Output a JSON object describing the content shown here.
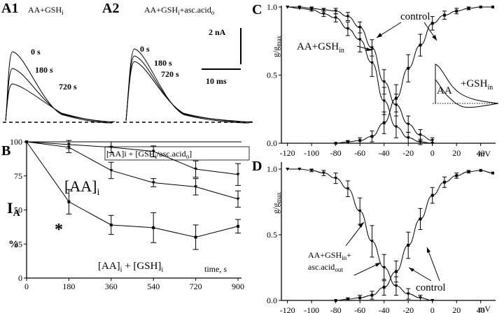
{
  "panelA": {
    "a1_label": "A1",
    "a1_condition": "AA+GSH",
    "a1_condition_sub": "i",
    "a2_label": "A2",
    "a2_condition": "AA+GSH",
    "a2_condition_sub": "i",
    "a2_condition_mid": "+asc.acid",
    "a2_condition_sub2": "o",
    "time_0": "0 s",
    "time_180": "180 s",
    "time_720": "720 s",
    "scale_current": "2 nA",
    "scale_time": "10 ms"
  },
  "panelB": {
    "label": "B",
    "ylabel": "I",
    "ylabel_sub": "A",
    "ylabel_unit": "%",
    "xlabel": "time, s",
    "legend_top_a": "[AA]i + [GSH",
    "legend_top_sub1": "i",
    "legend_top_b": "/asc.acid",
    "legend_top_sub2": "o",
    "legend_top_c": "]",
    "label_aa": "[AA]",
    "label_aa_sub": "i",
    "label_aagsh": "[AA]",
    "label_aagsh_sub": "i",
    "label_aagsh_mid": " + [GSH]",
    "label_aagsh_sub2": "i",
    "asterisk": "*"
  },
  "panelC": {
    "label": "C",
    "ylabel": "g/g",
    "ylabel_sub": "max",
    "xunit": "mV",
    "label_control": "control",
    "label_aagsh": "AA+GSH",
    "label_aagsh_sub": "in",
    "inset_gsh": "+GSH",
    "inset_gsh_sub": "in",
    "inset_aa": "AA"
  },
  "panelD": {
    "label": "D",
    "ylabel": "g/g",
    "ylabel_sub": "max",
    "xunit": "mV",
    "label_line1": "AA+GSH",
    "label_line1_sub": "in",
    "label_line1_end": "+",
    "label_line2": "asc.acid",
    "label_line2_sub": "out",
    "label_control": "control"
  },
  "chart_data": [
    {
      "type": "line",
      "panel": "B",
      "xlabel": "time, s",
      "ylabel": "IA %",
      "x": [
        0,
        180,
        360,
        540,
        720,
        900
      ],
      "xlim": [
        0,
        900
      ],
      "ylim": [
        0,
        100
      ],
      "xticks": [
        "0",
        "180",
        "360",
        "540",
        "720",
        "900"
      ],
      "yticks": [
        "0",
        "25",
        "50",
        "75",
        "100"
      ],
      "series": [
        {
          "name": "[AA]i + [GSHi/asc.acido]",
          "values": [
            100,
            98,
            96,
            93,
            80,
            76
          ],
          "errors": [
            0,
            3,
            4,
            4,
            6,
            8
          ]
        },
        {
          "name": "[AA]i",
          "values": [
            100,
            96,
            79,
            70,
            67,
            58
          ],
          "errors": [
            0,
            4,
            6,
            3,
            6,
            6
          ]
        },
        {
          "name": "[AA]i + [GSH]i",
          "values": [
            100,
            56,
            39,
            37,
            30,
            38
          ],
          "errors": [
            0,
            9,
            7,
            11,
            9,
            5
          ]
        }
      ]
    },
    {
      "type": "scatter",
      "panel": "C",
      "ylabel": "g/gmax",
      "xlabel": "mV",
      "xlim": [
        -125,
        50
      ],
      "ylim": [
        0,
        1.0
      ],
      "xticks": [
        "-120",
        "-100",
        "-80",
        "-60",
        "-40",
        "-20",
        "0",
        "20",
        "40"
      ],
      "yticks": [
        "0.0",
        "0.5",
        "1.0"
      ],
      "series": [
        {
          "name": "control",
          "kind": "inactivation",
          "x": [
            -120,
            -110,
            -100,
            -90,
            -80,
            -70,
            -60,
            -50,
            -40,
            -30,
            -20,
            -10,
            0
          ],
          "values": [
            1.0,
            1.0,
            0.99,
            0.98,
            0.97,
            0.93,
            0.85,
            0.7,
            0.45,
            0.28,
            0.14,
            0.06,
            0.02
          ],
          "errors": [
            0,
            0,
            0.01,
            0.01,
            0.02,
            0.03,
            0.04,
            0.06,
            0.09,
            0.08,
            0.06,
            0.04,
            0.02
          ]
        },
        {
          "name": "AA+GSHin",
          "kind": "inactivation",
          "x": [
            -120,
            -110,
            -100,
            -90,
            -80,
            -70,
            -60,
            -50,
            -40,
            -30,
            -20,
            -10,
            0
          ],
          "values": [
            1.0,
            0.99,
            0.98,
            0.95,
            0.92,
            0.84,
            0.76,
            0.59,
            0.31,
            0.12,
            0.04,
            0.01,
            0.0
          ],
          "errors": [
            0,
            0,
            0.01,
            0.02,
            0.03,
            0.05,
            0.09,
            0.1,
            0.1,
            0.08,
            0.04,
            0.02,
            0
          ]
        },
        {
          "name": "control activation",
          "kind": "activation",
          "x": [
            -80,
            -70,
            -60,
            -50,
            -40,
            -30,
            -20,
            -10,
            0,
            10,
            20,
            30,
            40,
            50
          ],
          "values": [
            0.0,
            0.01,
            0.02,
            0.05,
            0.15,
            0.33,
            0.55,
            0.72,
            0.88,
            0.94,
            0.97,
            0.99,
            1.0,
            1.0
          ],
          "errors": [
            0,
            0.01,
            0.02,
            0.04,
            0.08,
            0.1,
            0.1,
            0.08,
            0.05,
            0.03,
            0.02,
            0.01,
            0,
            0
          ]
        }
      ]
    },
    {
      "type": "scatter",
      "panel": "D",
      "ylabel": "g/gmax",
      "xlabel": "mV",
      "xlim": [
        -125,
        50
      ],
      "ylim": [
        0,
        1.0
      ],
      "xticks": [
        "-120",
        "-100",
        "-80",
        "-60",
        "-40",
        "-20",
        "0",
        "20",
        "40"
      ],
      "yticks": [
        "0.0",
        "0.5",
        "1.0"
      ],
      "series": [
        {
          "name": "AA+GSHin+asc.acidout",
          "kind": "inactivation",
          "x": [
            -120,
            -110,
            -100,
            -90,
            -80,
            -70,
            -60,
            -50,
            -40,
            -30,
            -20,
            -10,
            0
          ],
          "values": [
            1.0,
            1.0,
            0.99,
            0.97,
            0.93,
            0.85,
            0.68,
            0.45,
            0.25,
            0.11,
            0.05,
            0.02,
            0.0
          ],
          "errors": [
            0,
            0,
            0.01,
            0.02,
            0.04,
            0.06,
            0.1,
            0.12,
            0.1,
            0.07,
            0.04,
            0.02,
            0
          ]
        },
        {
          "name": "control",
          "kind": "activation",
          "x": [
            -80,
            -70,
            -60,
            -50,
            -40,
            -30,
            -20,
            -10,
            0,
            10,
            20,
            30,
            40,
            50
          ],
          "values": [
            0.0,
            0.01,
            0.02,
            0.04,
            0.1,
            0.22,
            0.42,
            0.62,
            0.8,
            0.9,
            0.95,
            0.98,
            0.99,
            0.97
          ],
          "errors": [
            0,
            0.01,
            0.02,
            0.03,
            0.06,
            0.08,
            0.1,
            0.08,
            0.06,
            0.04,
            0.02,
            0.01,
            0,
            0
          ]
        }
      ]
    }
  ]
}
